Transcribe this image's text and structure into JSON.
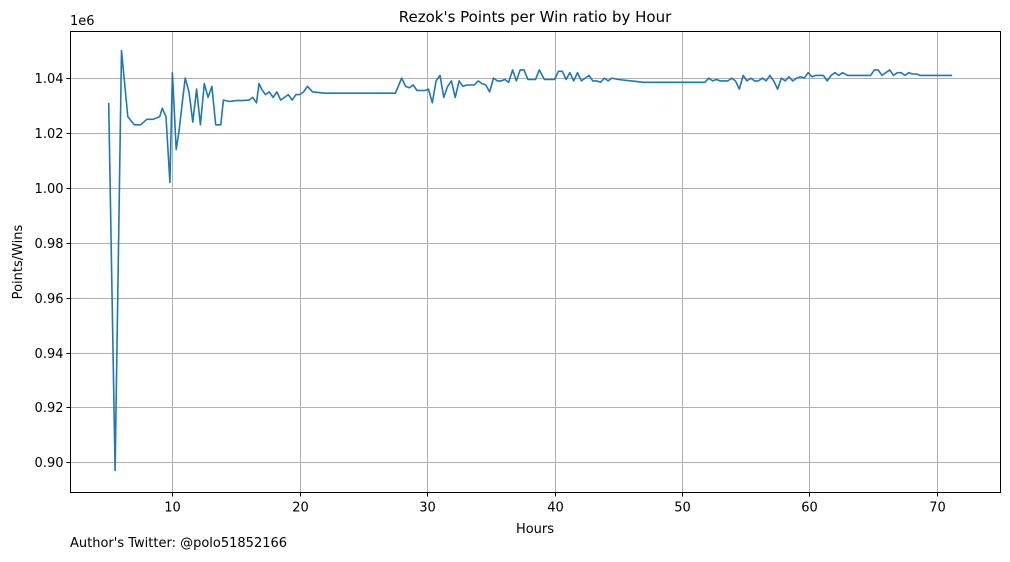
{
  "chart_data": {
    "type": "line",
    "title": "Rezok's Points per Win ratio by Hour",
    "xlabel": "Hours",
    "ylabel": "Points/Wins",
    "y_offset_label": "1e6",
    "xlim": [
      2,
      75
    ],
    "ylim": [
      0.889,
      1.057
    ],
    "x_ticks": [
      10,
      20,
      30,
      40,
      50,
      60,
      70
    ],
    "y_ticks": [
      0.9,
      0.92,
      0.94,
      0.96,
      0.98,
      1.0,
      1.02,
      1.04
    ],
    "y_tick_labels": [
      "0.90",
      "0.92",
      "0.94",
      "0.96",
      "0.98",
      "1.00",
      "1.02",
      "1.04"
    ],
    "grid": true,
    "series": [
      {
        "color": "#1f77b4",
        "x": [
          5.0,
          5.5,
          6.0,
          6.5,
          7.0,
          7.5,
          8.0,
          8.5,
          9.0,
          9.2,
          9.5,
          9.8,
          10.0,
          10.3,
          10.5,
          10.8,
          11.0,
          11.3,
          11.6,
          11.9,
          12.2,
          12.5,
          12.8,
          13.1,
          13.4,
          13.8,
          14.0,
          14.5,
          15.0,
          15.5,
          16.0,
          16.3,
          16.6,
          16.8,
          17.0,
          17.3,
          17.6,
          17.9,
          18.2,
          18.5,
          18.8,
          19.1,
          19.4,
          19.7,
          20.0,
          20.3,
          20.6,
          21.0,
          22.0,
          24.0,
          26.0,
          27.5,
          28.0,
          28.3,
          28.6,
          28.9,
          29.2,
          29.5,
          29.8,
          30.1,
          30.4,
          30.7,
          31.0,
          31.3,
          31.6,
          31.9,
          32.2,
          32.5,
          32.8,
          33.1,
          33.4,
          33.7,
          34.0,
          34.3,
          34.6,
          34.9,
          35.2,
          35.5,
          35.8,
          36.1,
          36.4,
          36.7,
          37.0,
          37.3,
          37.6,
          37.9,
          38.2,
          38.5,
          38.8,
          39.2,
          39.6,
          40.0,
          40.3,
          40.6,
          40.9,
          41.2,
          41.5,
          41.8,
          42.1,
          42.4,
          42.7,
          43.0,
          43.3,
          43.6,
          43.9,
          44.2,
          44.5,
          45.0,
          47.0,
          49.0,
          51.8,
          52.1,
          52.4,
          52.7,
          53.0,
          53.3,
          53.6,
          53.9,
          54.2,
          54.5,
          54.8,
          55.1,
          55.4,
          55.7,
          56.0,
          56.3,
          56.6,
          56.9,
          57.2,
          57.5,
          57.8,
          58.1,
          58.4,
          58.7,
          59.0,
          59.3,
          59.6,
          59.9,
          60.2,
          60.5,
          60.8,
          61.1,
          61.4,
          61.7,
          62.0,
          62.3,
          62.6,
          63.0,
          63.5,
          64.0,
          64.5,
          64.8,
          65.1,
          65.4,
          65.7,
          66.0,
          66.3,
          66.6,
          66.9,
          67.2,
          67.5,
          67.8,
          68.1,
          68.4,
          68.7,
          69.0,
          70.0,
          71.2
        ],
        "y": [
          1.031,
          0.897,
          1.05,
          1.026,
          1.023,
          1.023,
          1.025,
          1.025,
          1.026,
          1.029,
          1.026,
          1.002,
          1.042,
          1.014,
          1.02,
          1.032,
          1.04,
          1.035,
          1.024,
          1.036,
          1.023,
          1.038,
          1.033,
          1.037,
          1.023,
          1.023,
          1.032,
          1.0315,
          1.0318,
          1.0318,
          1.032,
          1.033,
          1.031,
          1.038,
          1.036,
          1.034,
          1.035,
          1.033,
          1.035,
          1.032,
          1.033,
          1.034,
          1.032,
          1.034,
          1.034,
          1.035,
          1.037,
          1.035,
          1.0345,
          1.0345,
          1.0345,
          1.0345,
          1.04,
          1.037,
          1.0365,
          1.0375,
          1.0355,
          1.0355,
          1.0355,
          1.036,
          1.031,
          1.039,
          1.041,
          1.033,
          1.037,
          1.039,
          1.033,
          1.039,
          1.037,
          1.0375,
          1.0375,
          1.0375,
          1.039,
          1.038,
          1.0375,
          1.035,
          1.04,
          1.039,
          1.039,
          1.0395,
          1.0385,
          1.043,
          1.039,
          1.043,
          1.043,
          1.0395,
          1.0395,
          1.0395,
          1.043,
          1.0395,
          1.0395,
          1.0395,
          1.0425,
          1.0425,
          1.0395,
          1.042,
          1.039,
          1.042,
          1.039,
          1.04,
          1.041,
          1.039,
          1.039,
          1.0385,
          1.04,
          1.039,
          1.04,
          1.0395,
          1.0385,
          1.0385,
          1.0385,
          1.04,
          1.039,
          1.0395,
          1.039,
          1.039,
          1.039,
          1.04,
          1.039,
          1.036,
          1.041,
          1.039,
          1.04,
          1.039,
          1.039,
          1.04,
          1.039,
          1.041,
          1.039,
          1.036,
          1.04,
          1.039,
          1.0405,
          1.039,
          1.04,
          1.0405,
          1.04,
          1.042,
          1.0405,
          1.041,
          1.041,
          1.041,
          1.039,
          1.041,
          1.042,
          1.041,
          1.042,
          1.041,
          1.041,
          1.041,
          1.041,
          1.041,
          1.043,
          1.043,
          1.041,
          1.042,
          1.043,
          1.041,
          1.042,
          1.042,
          1.041,
          1.042,
          1.0415,
          1.0415,
          1.041,
          1.041,
          1.041,
          1.041
        ]
      }
    ]
  },
  "footer": {
    "author_text": "Author's Twitter: @polo51852166"
  }
}
